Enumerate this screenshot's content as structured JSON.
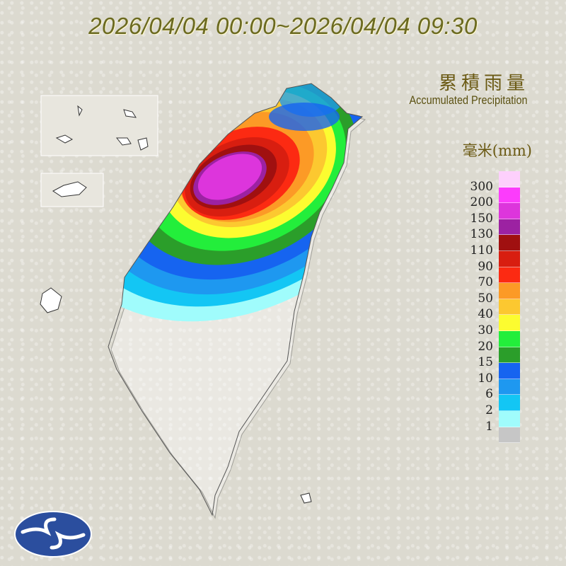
{
  "title": "2026/04/04 00:00~2026/04/04 09:30",
  "legend": {
    "title_zh": "累積雨量",
    "title_en": "Accumulated Precipitation",
    "unit": "毫米(mm)",
    "labels": [
      "300",
      "200",
      "150",
      "130",
      "110",
      "90",
      "70",
      "50",
      "40",
      "30",
      "20",
      "15",
      "10",
      "6",
      "2",
      "1"
    ],
    "colors": [
      "#fdd0fc",
      "#fc3cfc",
      "#dd35dc",
      "#9c22a2",
      "#a01010",
      "#d81e10",
      "#fc2a12",
      "#fc9a26",
      "#fcc830",
      "#fcfc30",
      "#23ee3b",
      "#2b9e2a",
      "#1664f0",
      "#1e98f0",
      "#13c6f4",
      "#a0fcfc",
      "#c6c6c6"
    ]
  },
  "logo": "cwa-logo"
}
